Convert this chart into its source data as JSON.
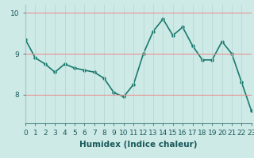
{
  "x": [
    0,
    1,
    2,
    3,
    4,
    5,
    6,
    7,
    8,
    9,
    10,
    11,
    12,
    13,
    14,
    15,
    16,
    17,
    18,
    19,
    20,
    21,
    22,
    23
  ],
  "y": [
    9.35,
    8.9,
    8.75,
    8.55,
    8.75,
    8.65,
    8.6,
    8.55,
    8.4,
    8.05,
    7.95,
    8.25,
    9.0,
    9.55,
    9.85,
    9.45,
    9.65,
    9.2,
    8.85,
    8.85,
    9.3,
    9.0,
    8.3,
    7.6
  ],
  "line_color": "#1a7a6e",
  "marker": "o",
  "marker_size": 2.2,
  "bg_color": "#ceeae7",
  "xlabel": "Humidex (Indice chaleur)",
  "xlim": [
    0,
    23
  ],
  "ylim": [
    7.3,
    10.2
  ],
  "yticks": [
    8,
    9,
    10
  ],
  "xtick_labels": [
    "0",
    "1",
    "2",
    "3",
    "4",
    "5",
    "6",
    "7",
    "8",
    "9",
    "10",
    "11",
    "12",
    "13",
    "14",
    "15",
    "16",
    "17",
    "18",
    "19",
    "20",
    "21",
    "22",
    "23"
  ],
  "xlabel_fontsize": 7.5,
  "tick_fontsize": 6.5,
  "line_width": 1.2,
  "vgrid_color": "#b8d8d4",
  "hgrid_color": "#e89090"
}
